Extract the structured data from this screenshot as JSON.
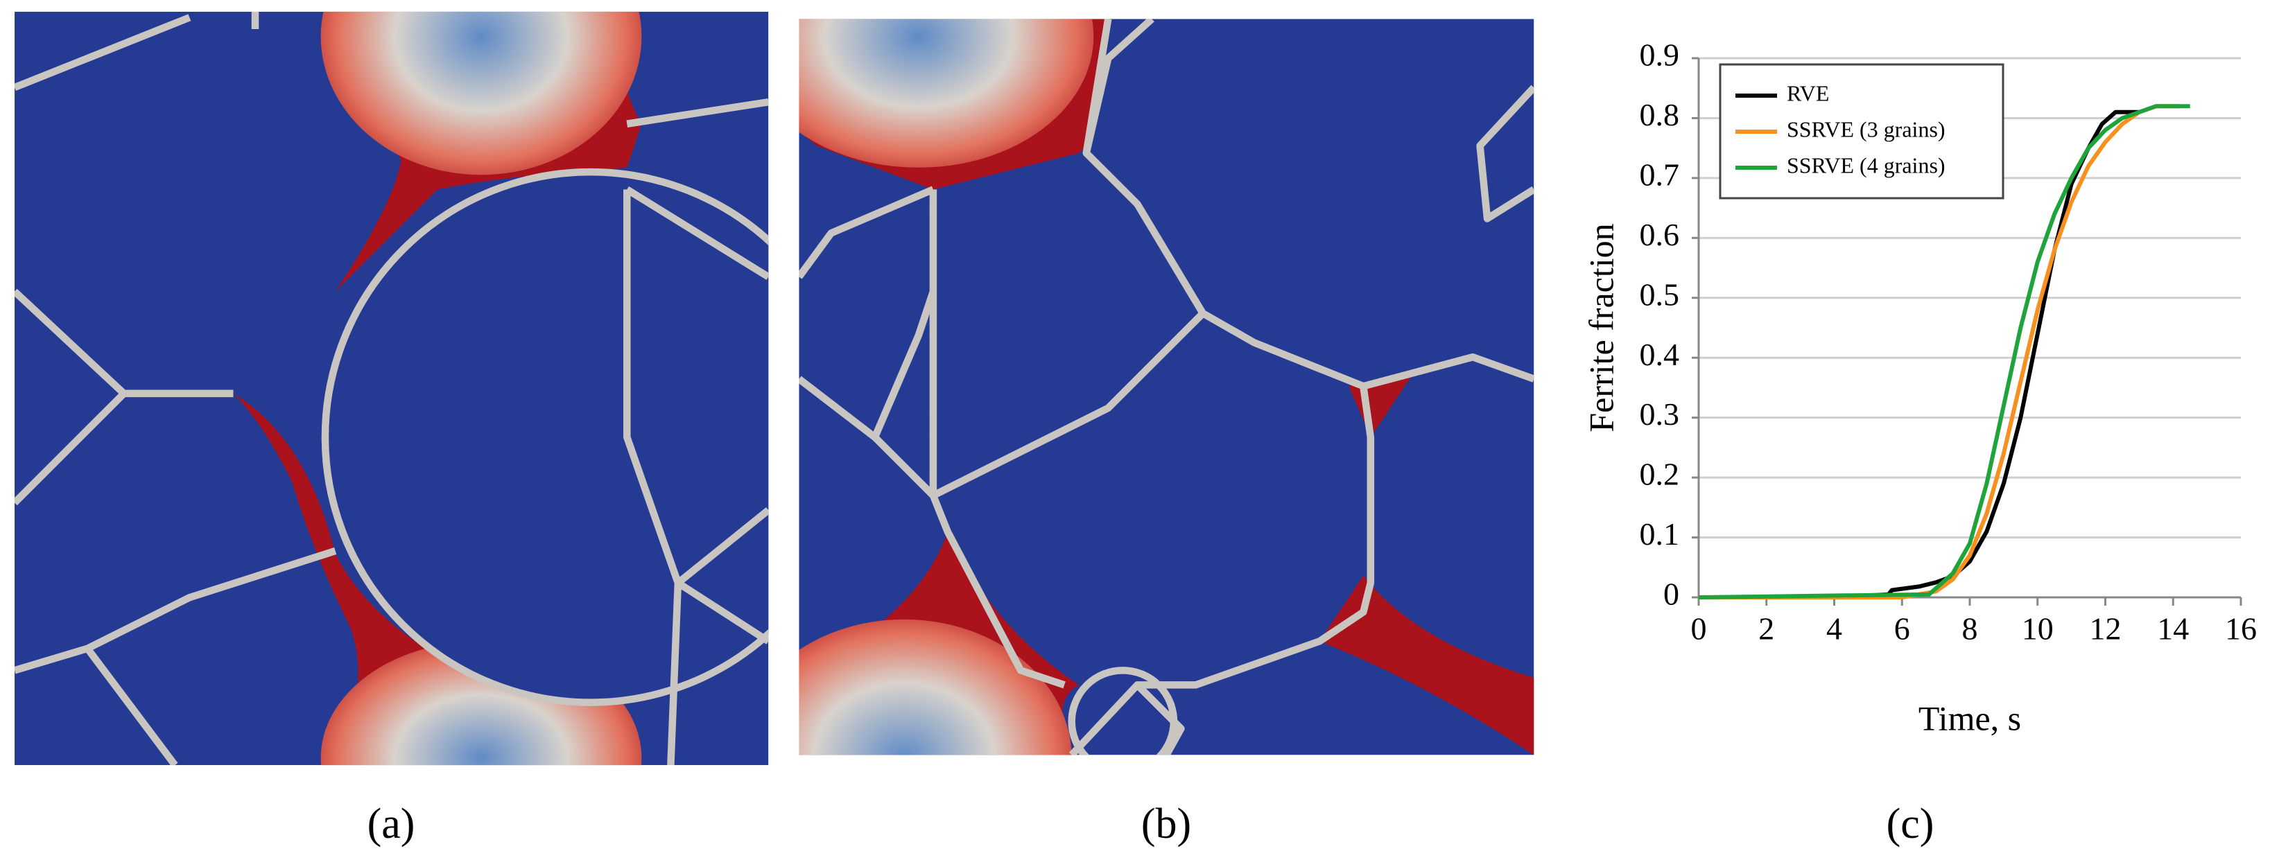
{
  "panel_labels": [
    "(a)",
    "(b)",
    "(c)"
  ],
  "chart_data": {
    "type": "line",
    "xlabel": "Time, s",
    "ylabel": "Ferrite fraction",
    "xlim": [
      0,
      16
    ],
    "xticks": [
      0,
      2,
      4,
      6,
      8,
      10,
      12,
      14,
      16
    ],
    "ylim": [
      0,
      0.9
    ],
    "yticks": [
      0,
      0.1,
      0.2,
      0.3,
      0.4,
      0.5,
      0.6,
      0.7,
      0.8,
      0.9
    ],
    "grid": true,
    "legend": "upper left",
    "series": [
      {
        "name": "RVE",
        "color": "#000000",
        "x": [
          0,
          2,
          4,
          5.6,
          5.7,
          6.5,
          7,
          7.5,
          8,
          8.5,
          9,
          9.5,
          10,
          10.5,
          11,
          11.5,
          11.9,
          12.3,
          13
        ],
        "values": [
          0,
          0,
          0,
          0.005,
          0.012,
          0.018,
          0.025,
          0.035,
          0.06,
          0.11,
          0.19,
          0.3,
          0.44,
          0.58,
          0.69,
          0.75,
          0.79,
          0.81,
          0.81
        ]
      },
      {
        "name": "SSRVE (3 grains)",
        "color": "#f7901e",
        "x": [
          0,
          6,
          7,
          7.5,
          8,
          8.5,
          9,
          9.5,
          10,
          10.5,
          11,
          11.5,
          12,
          12.5,
          13,
          13.5,
          14.2
        ],
        "values": [
          0,
          0,
          0.01,
          0.03,
          0.07,
          0.14,
          0.24,
          0.36,
          0.48,
          0.58,
          0.66,
          0.72,
          0.76,
          0.79,
          0.81,
          0.82,
          0.82
        ]
      },
      {
        "name": "SSRVE (4 grains)",
        "color": "#1fa33b",
        "x": [
          0,
          6.8,
          7,
          7.5,
          8,
          8.5,
          9,
          9.5,
          10,
          10.5,
          11,
          11.5,
          12,
          12.5,
          13,
          13.5,
          14.5
        ],
        "values": [
          0,
          0.005,
          0.015,
          0.04,
          0.09,
          0.19,
          0.32,
          0.45,
          0.56,
          0.64,
          0.7,
          0.75,
          0.78,
          0.8,
          0.81,
          0.82,
          0.82
        ]
      }
    ]
  }
}
